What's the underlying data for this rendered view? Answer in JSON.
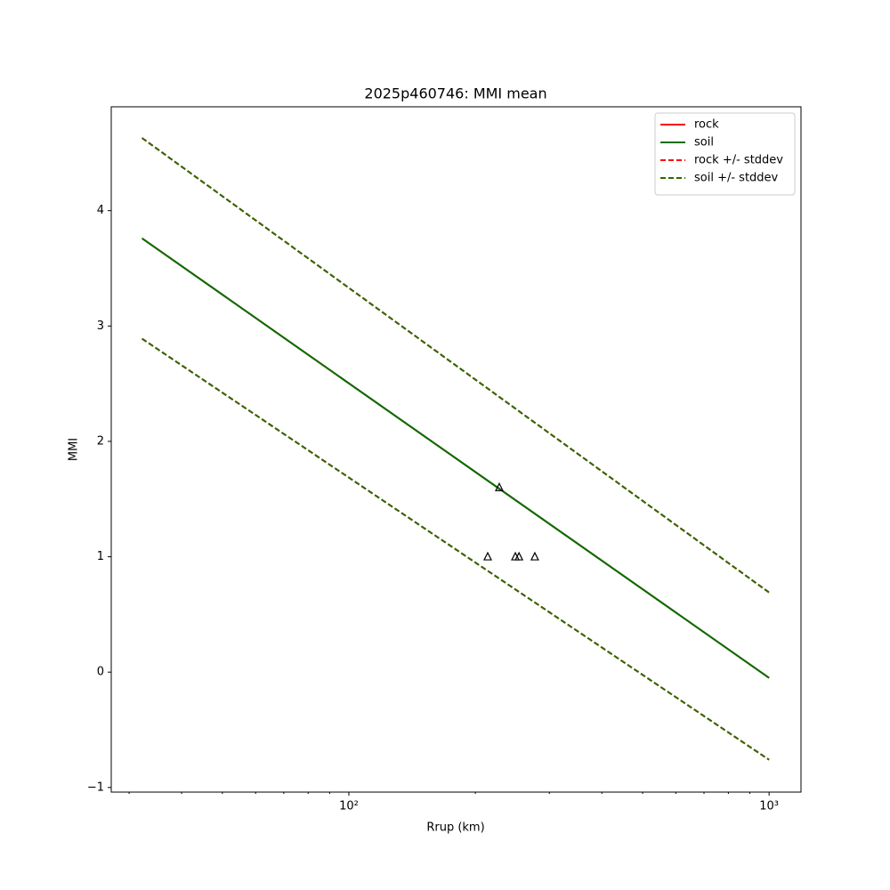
{
  "chart_data": {
    "type": "line",
    "title": "2025p460746: MMI mean",
    "xlabel": "Rrup (km)",
    "ylabel": "MMI",
    "xscale": "log",
    "x": [
      32.2,
      1000
    ],
    "series": [
      {
        "name": "rock",
        "color": "#ff0000",
        "style": "solid",
        "values": [
          3.76,
          -0.05
        ]
      },
      {
        "name": "soil",
        "color": "#007000",
        "style": "solid",
        "values": [
          3.76,
          -0.05
        ]
      },
      {
        "name": "rock +/- stddev",
        "color": "#ff0000",
        "style": "dashed",
        "upper": [
          4.63,
          0.69
        ],
        "lower": [
          2.89,
          -0.76
        ]
      },
      {
        "name": "soil +/- stddev",
        "color": "#2a6a00",
        "style": "dashed",
        "upper": [
          4.63,
          0.69
        ],
        "lower": [
          2.89,
          -0.76
        ]
      }
    ],
    "points": {
      "x": [
        228,
        214,
        249,
        254,
        277
      ],
      "y": [
        1.6,
        1.0,
        1.0,
        1.0,
        1.0
      ]
    },
    "xlim": [
      27.2,
      1191
    ],
    "ylim": [
      -1.04,
      4.9
    ],
    "xticks": [
      {
        "value": 100,
        "label": "10²"
      },
      {
        "value": 1000,
        "label": "10³"
      }
    ],
    "xminorticks": [
      30,
      40,
      50,
      60,
      70,
      80,
      90,
      200,
      300,
      400,
      500,
      600,
      700,
      800,
      900
    ],
    "yticks": [
      {
        "value": -1,
        "label": "−1"
      },
      0,
      1,
      2,
      3,
      4
    ],
    "legend": "upper right"
  }
}
